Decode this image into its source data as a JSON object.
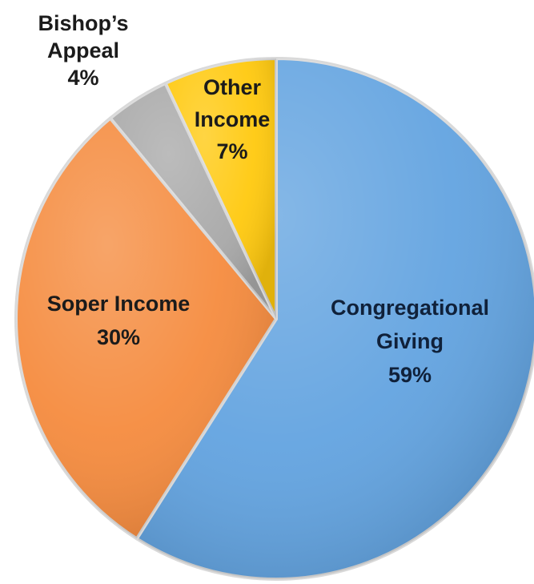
{
  "chart_data": {
    "type": "pie",
    "start_angle_deg": 0,
    "direction": "clockwise",
    "slices": [
      {
        "name": "Congregational Giving",
        "value": 59,
        "pct_label": "59%",
        "label_lines": [
          "Congregational",
          "Giving",
          "59%"
        ],
        "color": "#62a3e0"
      },
      {
        "name": "Soper Income",
        "value": 30,
        "pct_label": "30%",
        "label_lines": [
          "Soper Income",
          "30%"
        ],
        "color": "#f58b3e"
      },
      {
        "name": "Bishop's Appeal",
        "value": 4,
        "pct_label": "4%",
        "label_lines": [
          "Bishop’s",
          "Appeal",
          "4%"
        ],
        "color": "#a9a9a9"
      },
      {
        "name": "Other Income",
        "value": 7,
        "pct_label": "7%",
        "label_lines": [
          "Other",
          "Income",
          "7%"
        ],
        "color": "#ffc90e"
      }
    ]
  }
}
